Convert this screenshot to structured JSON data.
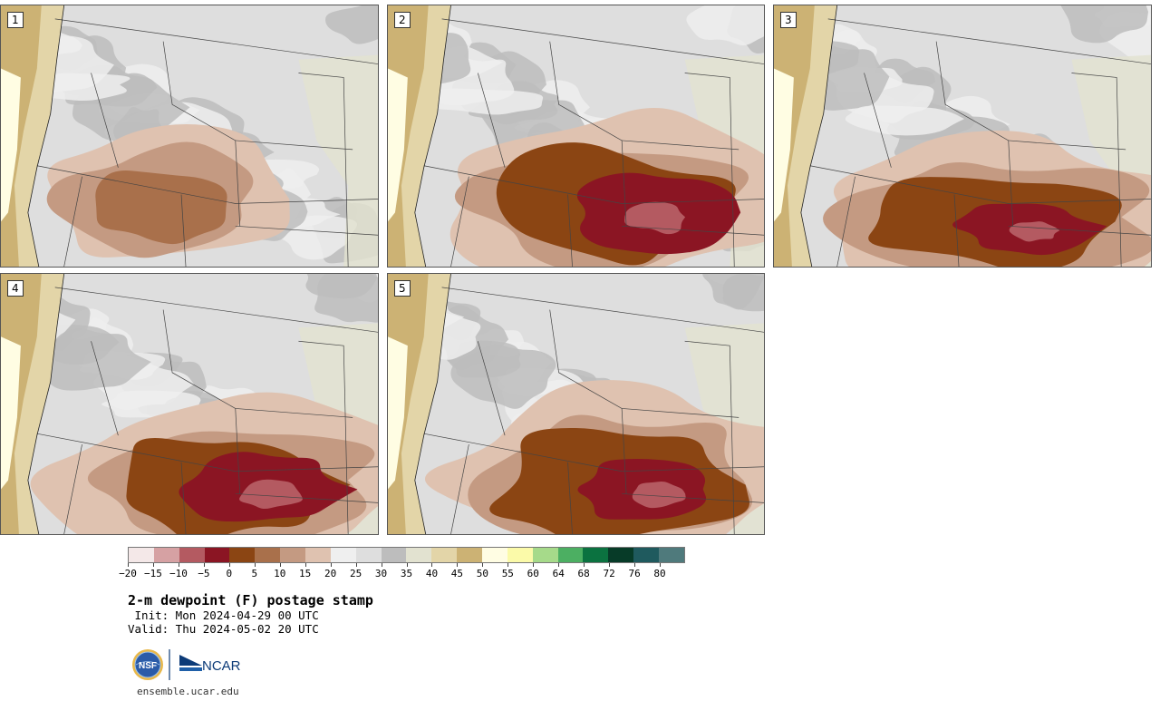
{
  "panels": [
    {
      "label": "1"
    },
    {
      "label": "2"
    },
    {
      "label": "3"
    },
    {
      "label": "4"
    },
    {
      "label": "5"
    }
  ],
  "colorbar": {
    "colors": [
      "#f4e8e8",
      "#d6a1a3",
      "#b45a61",
      "#8b1523",
      "#8b4513",
      "#a9704b",
      "#c49a82",
      "#dfc2b0",
      "#efefef",
      "#dedede",
      "#bdbdbd",
      "#e2e2d0",
      "#e3d5a8",
      "#ccb274",
      "#fffde3",
      "#fbfaa9",
      "#a6da8a",
      "#4caf62",
      "#0b7240",
      "#073b28",
      "#1f5a5e",
      "#4f7a7c"
    ],
    "tick_labels": [
      "−20",
      "−15",
      "−10",
      "−5",
      "0",
      "5",
      "10",
      "15",
      "20",
      "25",
      "30",
      "35",
      "40",
      "45",
      "50",
      "55",
      "60",
      "64",
      "68",
      "72",
      "76",
      "80"
    ]
  },
  "title": "2-m dewpoint (F) postage stamp",
  "init": " Init: Mon 2024-04-29 00 UTC",
  "valid": "Valid: Thu 2024-05-02 20 UTC",
  "logos": {
    "left": "NSF",
    "right": "NCAR"
  },
  "url": "ensemble.ucar.edu",
  "icons": {
    "nsf": "nsf-globe-logo",
    "ncar": "ncar-logo"
  }
}
